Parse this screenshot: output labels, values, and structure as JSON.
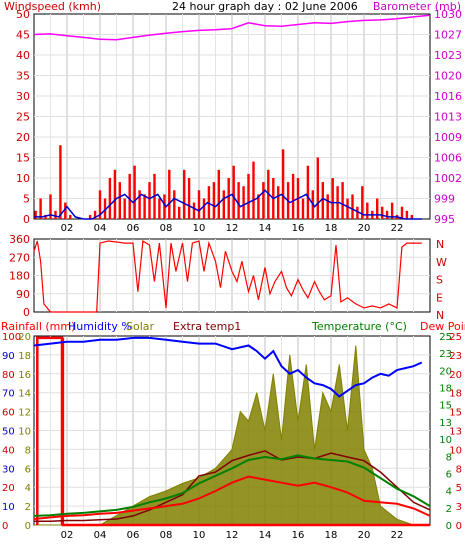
{
  "colors": {
    "windspeed": "#ff0000",
    "windavg": "#0000cc",
    "barometer": "#ff00ff",
    "direction": "#ff0000",
    "rainfall": "#ff0000",
    "humidity": "#0000ff",
    "solar": "#808000",
    "extratemp": "#800000",
    "temperature": "#008000",
    "dewpoint": "#ff0000",
    "grid": "#c0c0c0",
    "axis_left_1": "#cc0000",
    "axis_right_1": "#cc00cc",
    "axis_left_2": "#cc0000",
    "axis_right_2": "#cc0000",
    "axis_left_3a": "#cc0000",
    "axis_left_3b": "#0000cc",
    "axis_left_3c": "#808000",
    "axis_right_3a": "#008000",
    "axis_right_3b": "#cc0000"
  },
  "header": {
    "left": "Windspeed (kmh)",
    "title": "24 hour graph day : 02 June 2006",
    "right": "Barometer (mb)"
  },
  "legend3": {
    "rainfall": "Rainfall (mm)",
    "humidity": "Humidity %",
    "solar": "Solar",
    "extra": "Extra temp1",
    "temperature": "Temperature (°C)",
    "dewpoint": "Dew Point"
  },
  "chart_data": [
    {
      "type": "bar",
      "title": "24 hour graph day : 02 June 2006",
      "ylabel": "Windspeed (kmh)",
      "ylabel_right": "Barometer (mb)",
      "x_ticks": [
        "02",
        "04",
        "06",
        "08",
        "10",
        "12",
        "14",
        "16",
        "18",
        "20",
        "22"
      ],
      "xlim": [
        0,
        24
      ],
      "ylim": [
        0,
        50
      ],
      "y_ticks": [
        "0",
        "5",
        "10",
        "15",
        "20",
        "25",
        "30",
        "35",
        "40",
        "45",
        "50"
      ],
      "ylim_right": [
        995,
        1030
      ],
      "y_ticks_right": [
        "995",
        "999",
        "1002",
        "1006",
        "1009",
        "1013",
        "1016",
        "1020",
        "1023",
        "1027",
        "1030"
      ],
      "series": [
        {
          "name": "Windspeed (kmh)",
          "kind": "bars",
          "x": [
            0.1,
            0.4,
            0.7,
            1.0,
            1.3,
            1.6,
            1.9,
            2.2,
            2.5,
            2.8,
            3.1,
            3.4,
            3.7,
            4.0,
            4.3,
            4.6,
            4.9,
            5.2,
            5.5,
            5.8,
            6.1,
            6.4,
            6.7,
            7.0,
            7.3,
            7.6,
            7.9,
            8.2,
            8.5,
            8.8,
            9.1,
            9.4,
            9.7,
            10.0,
            10.3,
            10.6,
            10.9,
            11.2,
            11.5,
            11.8,
            12.1,
            12.4,
            12.7,
            13.0,
            13.3,
            13.6,
            13.9,
            14.2,
            14.5,
            14.8,
            15.1,
            15.4,
            15.7,
            16.0,
            16.3,
            16.6,
            16.9,
            17.2,
            17.5,
            17.8,
            18.1,
            18.4,
            18.7,
            19.0,
            19.3,
            19.6,
            19.9,
            20.2,
            20.5,
            20.8,
            21.1,
            21.4,
            21.7,
            22.0,
            22.3,
            22.6,
            22.9,
            23.2,
            23.5
          ],
          "values": [
            2,
            5,
            1,
            6,
            2,
            18,
            4,
            1,
            0,
            0,
            0,
            1,
            2,
            7,
            5,
            10,
            12,
            9,
            5,
            11,
            13,
            7,
            6,
            9,
            11,
            5,
            6,
            12,
            7,
            3,
            12,
            10,
            4,
            7,
            5,
            8,
            9,
            12,
            7,
            10,
            13,
            9,
            8,
            11,
            14,
            6,
            9,
            12,
            10,
            8,
            17,
            9,
            11,
            10,
            5,
            13,
            7,
            15,
            9,
            6,
            10,
            8,
            9,
            5,
            6,
            3,
            8,
            4,
            2,
            5,
            3,
            2,
            4,
            1,
            3,
            2,
            1,
            0,
            0
          ]
        },
        {
          "name": "Average windspeed",
          "kind": "line",
          "x": [
            0,
            0.5,
            1,
            1.5,
            2,
            2.5,
            3,
            3.5,
            4,
            4.5,
            5,
            5.5,
            6,
            6.5,
            7,
            7.5,
            8,
            8.5,
            9,
            9.5,
            10,
            10.5,
            11,
            11.5,
            12,
            12.5,
            13,
            13.5,
            14,
            14.5,
            15,
            15.5,
            16,
            16.5,
            17,
            17.5,
            18,
            18.5,
            19,
            19.5,
            20,
            20.5,
            21,
            21.5,
            22,
            22.5,
            23,
            23.5
          ],
          "values": [
            0.5,
            0.5,
            1,
            0.5,
            3,
            0.5,
            0,
            0,
            1,
            3,
            5,
            6,
            4,
            6,
            5,
            6,
            3,
            5,
            4,
            3,
            2,
            4,
            3,
            5,
            6,
            3,
            4,
            5,
            7,
            5,
            6,
            4,
            5,
            6,
            3,
            5,
            4,
            4,
            3,
            2,
            1,
            1,
            1,
            0.5,
            0.5,
            0,
            0,
            0
          ]
        },
        {
          "name": "Barometer (mb)",
          "kind": "line",
          "axis": "right",
          "x": [
            0,
            1,
            2,
            3,
            4,
            5,
            6,
            7,
            8,
            9,
            10,
            11,
            12,
            13,
            14,
            15,
            16,
            17,
            18,
            19,
            20,
            21,
            22,
            23,
            24
          ],
          "values": [
            1026.5,
            1026.6,
            1026.3,
            1026,
            1025.7,
            1025.6,
            1026,
            1026.4,
            1026.7,
            1027,
            1027.2,
            1027.3,
            1027.5,
            1028.5,
            1028,
            1027.9,
            1028.2,
            1028.5,
            1028.4,
            1028.7,
            1028.9,
            1029,
            1029.2,
            1029.5,
            1029.8
          ]
        }
      ]
    },
    {
      "type": "line",
      "ylabel": "Wind direction",
      "x_ticks": [
        "02",
        "04",
        "06",
        "08",
        "10",
        "12",
        "14",
        "16",
        "18",
        "20",
        "22"
      ],
      "xlim": [
        0,
        24
      ],
      "ylim": [
        0,
        360
      ],
      "y_ticks": [
        "0",
        "90",
        "180",
        "270",
        "360"
      ],
      "y_ticks_right": [
        "N",
        "E",
        "S",
        "W",
        "N"
      ],
      "series": [
        {
          "name": "Wind direction",
          "x": [
            0,
            0.2,
            0.4,
            0.6,
            1.0,
            1.4,
            1.8,
            2.2,
            2.6,
            3.0,
            3.4,
            3.8,
            4.0,
            4.5,
            5.0,
            5.5,
            6.0,
            6.3,
            6.6,
            7.0,
            7.3,
            7.6,
            8.0,
            8.3,
            8.6,
            9.0,
            9.3,
            9.6,
            10.0,
            10.3,
            10.6,
            11.0,
            11.3,
            11.6,
            12.0,
            12.3,
            12.6,
            13.0,
            13.3,
            13.6,
            14.0,
            14.3,
            14.6,
            15.0,
            15.3,
            15.6,
            16.0,
            16.3,
            16.6,
            17.0,
            17.3,
            17.6,
            18.0,
            18.3,
            18.6,
            19.0,
            19.5,
            20.0,
            20.5,
            21.0,
            21.5,
            22.0,
            22.3,
            22.6,
            23.0,
            23.5
          ],
          "values": [
            300,
            350,
            250,
            40,
            0,
            0,
            0,
            0,
            0,
            0,
            0,
            0,
            340,
            350,
            345,
            340,
            340,
            100,
            350,
            330,
            150,
            340,
            20,
            340,
            200,
            340,
            150,
            340,
            350,
            200,
            340,
            250,
            120,
            300,
            200,
            150,
            250,
            100,
            180,
            60,
            220,
            90,
            150,
            200,
            120,
            80,
            160,
            110,
            70,
            150,
            100,
            60,
            80,
            330,
            50,
            70,
            40,
            20,
            30,
            20,
            40,
            20,
            320,
            340,
            340,
            340
          ]
        }
      ]
    },
    {
      "type": "line",
      "x_ticks": [
        "02",
        "04",
        "06",
        "08",
        "10",
        "12",
        "14",
        "16",
        "18",
        "20",
        "22"
      ],
      "xlim": [
        0,
        24
      ],
      "y_ticks_left_1": [
        "0",
        "10",
        "20",
        "30",
        "40",
        "50",
        "60",
        "70",
        "80",
        "90",
        "100"
      ],
      "y_ticks_left_2": [
        "0",
        "2",
        "4",
        "6",
        "8",
        "10",
        "12",
        "14",
        "16",
        "18",
        "20"
      ],
      "ylim_left_1": [
        0,
        100
      ],
      "ylim_left_2": [
        0,
        20
      ],
      "y_ticks_right_1": [
        "0",
        "2",
        "4",
        "6",
        "8",
        "10",
        "13",
        "15",
        "18",
        "20",
        "23",
        "25"
      ],
      "y_ticks_right_2": [
        "0",
        "3",
        "5",
        "8",
        "10",
        "13",
        "15",
        "18",
        "20",
        "23",
        "25"
      ],
      "ylim_right": [
        0,
        25
      ],
      "series": [
        {
          "name": "Rainfall (mm)",
          "axis": "left_1",
          "x": [
            0.2,
            0.2,
            1.7,
            1.7,
            1.75,
            1.75,
            24
          ],
          "values": [
            0,
            99,
            99,
            0,
            99,
            0,
            0
          ]
        },
        {
          "name": "Humidity %",
          "axis": "left_1",
          "x": [
            0,
            1,
            2,
            3,
            4,
            5,
            6,
            7,
            8,
            9,
            10,
            11,
            12,
            13,
            13.5,
            14,
            14.5,
            15,
            15.5,
            16,
            16.5,
            17,
            17.5,
            18,
            18.5,
            19,
            19.5,
            20,
            20.5,
            21,
            21.5,
            22,
            22.5,
            23,
            23.5
          ],
          "values": [
            95,
            96,
            97,
            97,
            98,
            98,
            99,
            99,
            98,
            97,
            96,
            96,
            93,
            95,
            92,
            88,
            92,
            84,
            80,
            82,
            78,
            75,
            74,
            72,
            68,
            71,
            74,
            75,
            78,
            80,
            79,
            82,
            83,
            84,
            86
          ]
        },
        {
          "name": "Solar",
          "axis": "left_1",
          "kind": "area",
          "x": [
            0,
            4,
            5,
            6,
            7,
            8,
            9,
            10,
            11,
            12,
            12.5,
            13,
            13.5,
            14,
            14.5,
            15,
            15.5,
            16,
            16.5,
            17,
            17.5,
            18,
            18.5,
            19,
            19.5,
            20,
            20.5,
            21,
            22,
            23,
            24
          ],
          "values": [
            0,
            0,
            5,
            10,
            15,
            18,
            22,
            25,
            30,
            40,
            60,
            55,
            70,
            50,
            80,
            45,
            90,
            55,
            85,
            40,
            70,
            60,
            85,
            50,
            95,
            40,
            30,
            10,
            3,
            0,
            0
          ]
        },
        {
          "name": "Extra temp1",
          "axis": "right",
          "x": [
            0,
            1,
            2,
            3,
            4,
            5,
            6,
            7,
            8,
            9,
            10,
            11,
            12,
            13,
            14,
            15,
            16,
            17,
            18,
            19,
            20,
            21,
            22,
            23,
            24
          ],
          "values": [
            0.5,
            0.5,
            0.6,
            0.6,
            0.7,
            0.8,
            1.2,
            2,
            3,
            4,
            6.5,
            7,
            8.5,
            9.2,
            9.8,
            8.6,
            9,
            8.8,
            9.5,
            9,
            8.5,
            7,
            5,
            3,
            2
          ]
        },
        {
          "name": "Temperature (°C)",
          "axis": "right",
          "x": [
            0,
            1,
            2,
            3,
            4,
            5,
            6,
            7,
            8,
            9,
            10,
            11,
            12,
            13,
            14,
            15,
            16,
            17,
            18,
            19,
            20,
            21,
            22,
            23,
            24
          ],
          "values": [
            1.2,
            1.3,
            1.5,
            1.6,
            1.8,
            2,
            2.4,
            3,
            3.5,
            4.2,
            5.5,
            6.5,
            7.5,
            8.6,
            9,
            8.7,
            9.2,
            8.8,
            8.6,
            8.4,
            7.6,
            6.2,
            4.8,
            3.8,
            2.5
          ]
        },
        {
          "name": "Dew Point",
          "axis": "right",
          "x": [
            0,
            1,
            2,
            3,
            4,
            5,
            6,
            7,
            8,
            9,
            10,
            11,
            12,
            13,
            14,
            15,
            16,
            17,
            18,
            19,
            20,
            21,
            22,
            23,
            24
          ],
          "values": [
            0.8,
            1.0,
            1.2,
            1.3,
            1.5,
            1.6,
            1.9,
            2.2,
            2.5,
            2.8,
            3.5,
            4.5,
            5.6,
            6.4,
            6,
            5.6,
            5.2,
            5.6,
            5,
            4.3,
            3.2,
            3,
            2.8,
            2.2,
            1.2
          ]
        }
      ]
    }
  ]
}
